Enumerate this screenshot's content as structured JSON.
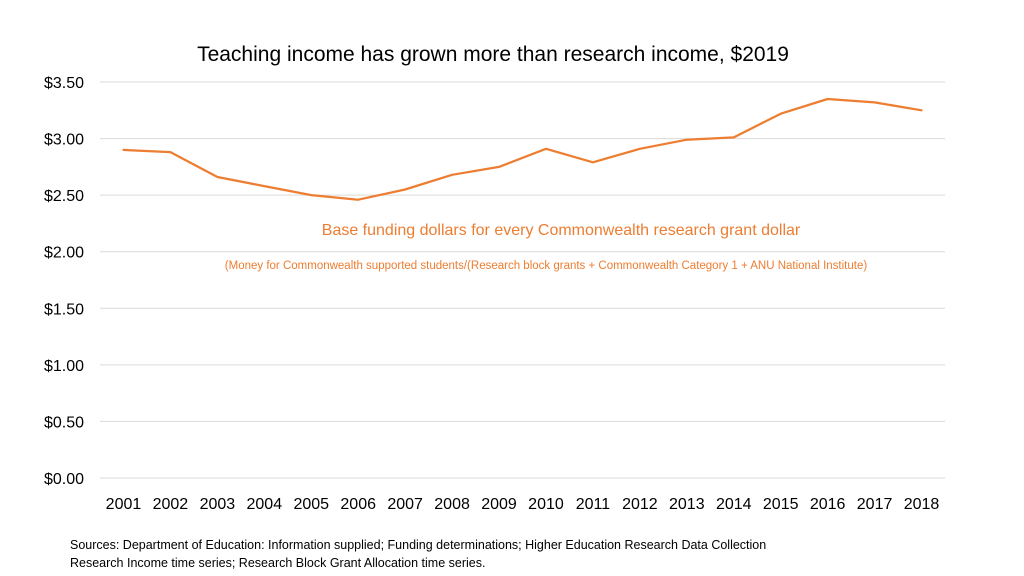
{
  "chart_data": {
    "type": "line",
    "title": "Teaching income has grown more than research income, $2019",
    "categories": [
      "2001",
      "2002",
      "2003",
      "2004",
      "2005",
      "2006",
      "2007",
      "2008",
      "2009",
      "2010",
      "2011",
      "2012",
      "2013",
      "2014",
      "2015",
      "2016",
      "2017",
      "2018"
    ],
    "series": [
      {
        "name": "Base funding dollars for every Commonwealth research grant dollar",
        "values": [
          2.9,
          2.88,
          2.66,
          2.58,
          2.5,
          2.46,
          2.55,
          2.68,
          2.75,
          2.91,
          2.79,
          2.91,
          2.99,
          3.01,
          3.22,
          3.35,
          3.32,
          3.25
        ]
      }
    ],
    "ylim": [
      0,
      3.5
    ],
    "yticks": [
      0,
      0.5,
      1.0,
      1.5,
      2.0,
      2.5,
      3.0,
      3.5
    ],
    "ytick_labels": [
      "$0.00",
      "$0.50",
      "$1.00",
      "$1.50",
      "$2.00",
      "$2.50",
      "$3.00",
      "$3.50"
    ],
    "grid": true,
    "annotations": {
      "series_label": "Base funding dollars for every Commonwealth research grant dollar",
      "formula": "(Money for Commonwealth supported students/(Research block grants + Commonwealth Category 1 + ANU National Institute)"
    },
    "colors": {
      "line": "#ED7D31",
      "grid": "#D9D9D9",
      "text": "#000000"
    }
  },
  "sources": {
    "line1": "Sources: Department of Education: Information supplied; Funding determinations; Higher Education Research Data Collection",
    "line2": "Research Income time series;  Research Block Grant Allocation time series."
  }
}
